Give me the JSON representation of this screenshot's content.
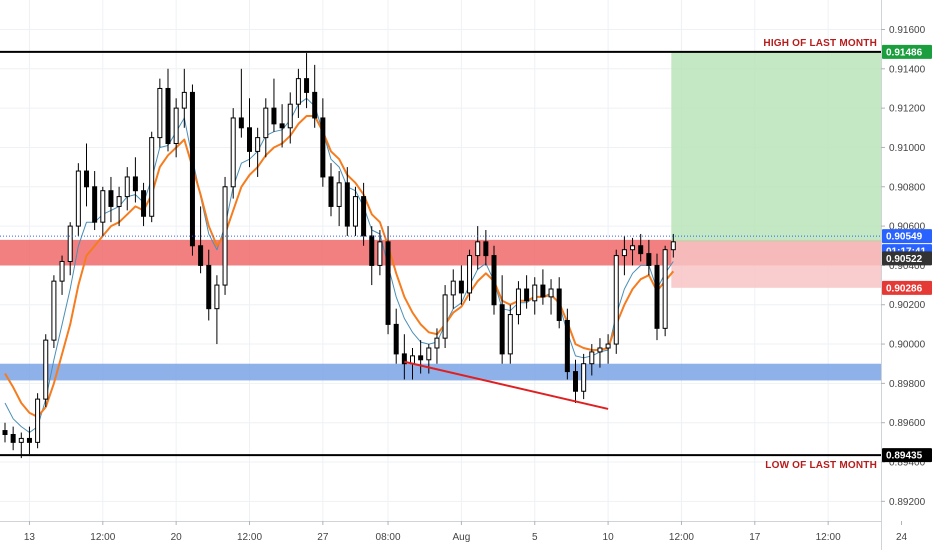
{
  "chart_data": {
    "type": "candlestick",
    "y_axis": {
      "range": [
        0.891,
        0.9175
      ],
      "ticks": [
        "0.91600",
        "0.91400",
        "0.91200",
        "0.91000",
        "0.90800",
        "0.90600",
        "0.90400",
        "0.90200",
        "0.90000",
        "0.89800",
        "0.89600",
        "0.89400",
        "0.89200"
      ],
      "position": "right"
    },
    "x_axis": {
      "ticks": [
        {
          "label": "13",
          "bar": 3
        },
        {
          "label": "12:00",
          "bar": 12
        },
        {
          "label": "20",
          "bar": 21
        },
        {
          "label": "12:00",
          "bar": 30
        },
        {
          "label": "27",
          "bar": 39
        },
        {
          "label": "08:00",
          "bar": 47
        },
        {
          "label": "Aug",
          "bar": 56
        },
        {
          "label": "5",
          "bar": 65
        },
        {
          "label": "10",
          "bar": 74
        },
        {
          "label": "12:00",
          "bar": 83
        },
        {
          "label": "17",
          "bar": 92
        },
        {
          "label": "12:00",
          "bar": 101
        },
        {
          "label": "24",
          "bar": 110
        }
      ],
      "total_slots": 118
    },
    "candles": [
      [
        0.8956,
        0.896,
        0.895,
        0.8954
      ],
      [
        0.8954,
        0.8958,
        0.8946,
        0.895
      ],
      [
        0.895,
        0.8955,
        0.8942,
        0.8952
      ],
      [
        0.8952,
        0.8958,
        0.8944,
        0.895
      ],
      [
        0.895,
        0.8975,
        0.8947,
        0.8972
      ],
      [
        0.8972,
        0.9005,
        0.8968,
        0.9002
      ],
      [
        0.9002,
        0.9035,
        0.8998,
        0.9032
      ],
      [
        0.9032,
        0.9045,
        0.9025,
        0.9042
      ],
      [
        0.9042,
        0.9062,
        0.9035,
        0.906
      ],
      [
        0.906,
        0.9092,
        0.9055,
        0.9088
      ],
      [
        0.9088,
        0.9102,
        0.907,
        0.908
      ],
      [
        0.908,
        0.9088,
        0.9058,
        0.9062
      ],
      [
        0.9062,
        0.908,
        0.9055,
        0.9078
      ],
      [
        0.9078,
        0.9085,
        0.9062,
        0.907
      ],
      [
        0.907,
        0.908,
        0.906,
        0.9075
      ],
      [
        0.9075,
        0.909,
        0.9068,
        0.9085
      ],
      [
        0.9085,
        0.9095,
        0.9072,
        0.9078
      ],
      [
        0.9078,
        0.9082,
        0.906,
        0.9065
      ],
      [
        0.9065,
        0.9108,
        0.9062,
        0.9105
      ],
      [
        0.9105,
        0.9135,
        0.91,
        0.913
      ],
      [
        0.913,
        0.914,
        0.9098,
        0.9102
      ],
      [
        0.9102,
        0.9125,
        0.9095,
        0.912
      ],
      [
        0.912,
        0.914,
        0.911,
        0.9128
      ],
      [
        0.9128,
        0.9132,
        0.9045,
        0.905
      ],
      [
        0.905,
        0.907,
        0.9036,
        0.904
      ],
      [
        0.904,
        0.9048,
        0.9012,
        0.9018
      ],
      [
        0.9018,
        0.9035,
        0.9,
        0.903
      ],
      [
        0.903,
        0.9085,
        0.9025,
        0.908
      ],
      [
        0.908,
        0.912,
        0.9074,
        0.9115
      ],
      [
        0.9115,
        0.914,
        0.9105,
        0.911
      ],
      [
        0.911,
        0.9125,
        0.909,
        0.9098
      ],
      [
        0.9098,
        0.911,
        0.9085,
        0.9105
      ],
      [
        0.9105,
        0.9125,
        0.9095,
        0.912
      ],
      [
        0.912,
        0.9135,
        0.9108,
        0.9112
      ],
      [
        0.9112,
        0.9122,
        0.91,
        0.911
      ],
      [
        0.911,
        0.9128,
        0.9102,
        0.9122
      ],
      [
        0.9122,
        0.914,
        0.9115,
        0.9135
      ],
      [
        0.9135,
        0.9148,
        0.912,
        0.9128
      ],
      [
        0.9128,
        0.9142,
        0.911,
        0.9115
      ],
      [
        0.9115,
        0.9125,
        0.908,
        0.9085
      ],
      [
        0.9085,
        0.9092,
        0.9065,
        0.907
      ],
      [
        0.907,
        0.9088,
        0.906,
        0.9082
      ],
      [
        0.9082,
        0.909,
        0.9055,
        0.906
      ],
      [
        0.906,
        0.908,
        0.9055,
        0.9075
      ],
      [
        0.9075,
        0.9082,
        0.905,
        0.9055
      ],
      [
        0.9055,
        0.906,
        0.903,
        0.904
      ],
      [
        0.904,
        0.9058,
        0.9035,
        0.9052
      ],
      [
        0.9052,
        0.906,
        0.9005,
        0.901
      ],
      [
        0.901,
        0.9018,
        0.899,
        0.8995
      ],
      [
        0.8995,
        0.9005,
        0.8982,
        0.899
      ],
      [
        0.899,
        0.8998,
        0.8982,
        0.8994
      ],
      [
        0.8994,
        0.9002,
        0.8985,
        0.8992
      ],
      [
        0.8992,
        0.9,
        0.8985,
        0.8998
      ],
      [
        0.8998,
        0.9008,
        0.899,
        0.9003
      ],
      [
        0.9003,
        0.903,
        0.8998,
        0.9025
      ],
      [
        0.9025,
        0.9038,
        0.9018,
        0.9032
      ],
      [
        0.9032,
        0.904,
        0.902,
        0.9026
      ],
      [
        0.9026,
        0.9048,
        0.9022,
        0.9045
      ],
      [
        0.9045,
        0.906,
        0.9038,
        0.9052
      ],
      [
        0.9052,
        0.9058,
        0.904,
        0.9045
      ],
      [
        0.9045,
        0.905,
        0.9015,
        0.902
      ],
      [
        0.902,
        0.9035,
        0.899,
        0.8995
      ],
      [
        0.8995,
        0.902,
        0.899,
        0.9015
      ],
      [
        0.9015,
        0.9032,
        0.901,
        0.9028
      ],
      [
        0.9028,
        0.9035,
        0.9018,
        0.9022
      ],
      [
        0.9022,
        0.9034,
        0.9015,
        0.903
      ],
      [
        0.903,
        0.9038,
        0.902,
        0.9024
      ],
      [
        0.9024,
        0.9033,
        0.9015,
        0.9028
      ],
      [
        0.9028,
        0.9034,
        0.9008,
        0.9012
      ],
      [
        0.9012,
        0.9018,
        0.8982,
        0.8986
      ],
      [
        0.8986,
        0.8992,
        0.897,
        0.8976
      ],
      [
        0.8976,
        0.8995,
        0.8972,
        0.899
      ],
      [
        0.899,
        0.9,
        0.8984,
        0.8996
      ],
      [
        0.8996,
        0.9003,
        0.8988,
        0.8998
      ],
      [
        0.8998,
        0.9005,
        0.899,
        0.9
      ],
      [
        0.9,
        0.9048,
        0.8995,
        0.9045
      ],
      [
        0.9045,
        0.9055,
        0.9035,
        0.9048
      ],
      [
        0.9048,
        0.9054,
        0.904,
        0.905
      ],
      [
        0.905,
        0.9056,
        0.9042,
        0.9046
      ],
      [
        0.9046,
        0.9053,
        0.9035,
        0.904
      ],
      [
        0.904,
        0.9046,
        0.9002,
        0.9008
      ],
      [
        0.9008,
        0.905,
        0.9004,
        0.9048
      ],
      [
        0.9048,
        0.9056,
        0.9044,
        0.9052
      ]
    ],
    "candle_slots": [
      0,
      1,
      2,
      3,
      4,
      5,
      6,
      7,
      8,
      9,
      10,
      11,
      12,
      13,
      14,
      15,
      16,
      17,
      18,
      19,
      20,
      21,
      22,
      23,
      24,
      25,
      26,
      27,
      28,
      29,
      30,
      31,
      32,
      33,
      34,
      35,
      36,
      37,
      38,
      39,
      40,
      41,
      42,
      43,
      44,
      45,
      46,
      47,
      48,
      49,
      50,
      51,
      52,
      53,
      54,
      55,
      56,
      57,
      58,
      59,
      60,
      61,
      62,
      63,
      64,
      65,
      66,
      67,
      68,
      69,
      70,
      71,
      72,
      73,
      74,
      75,
      76,
      77,
      78,
      79,
      80,
      81,
      82
    ],
    "ema_slow": [
      0.8985,
      0.8978,
      0.897,
      0.8965,
      0.8963,
      0.8968,
      0.898,
      0.8995,
      0.901,
      0.903,
      0.9045,
      0.905,
      0.9055,
      0.906,
      0.9062,
      0.9066,
      0.907,
      0.9068,
      0.9076,
      0.909,
      0.9096,
      0.91,
      0.9104,
      0.909,
      0.9076,
      0.906,
      0.905,
      0.9056,
      0.9068,
      0.908,
      0.9086,
      0.909,
      0.9096,
      0.91,
      0.9102,
      0.9106,
      0.9112,
      0.9116,
      0.9116,
      0.9108,
      0.9098,
      0.9094,
      0.9086,
      0.9082,
      0.9076,
      0.9066,
      0.9062,
      0.905,
      0.9036,
      0.9024,
      0.9016,
      0.901,
      0.9006,
      0.9005,
      0.901,
      0.9016,
      0.9019,
      0.9026,
      0.9032,
      0.9036,
      0.9032,
      0.9022,
      0.902,
      0.9022,
      0.9022,
      0.9024,
      0.9024,
      0.9025,
      0.9021,
      0.9011,
      0.9,
      0.8998,
      0.8997,
      0.8997,
      0.8998,
      0.901,
      0.902,
      0.9028,
      0.9033,
      0.9035,
      0.9027,
      0.9032,
      0.9037
    ],
    "ema_fast": [
      0.897,
      0.8962,
      0.8958,
      0.8955,
      0.8958,
      0.8972,
      0.8992,
      0.901,
      0.9028,
      0.905,
      0.9062,
      0.9062,
      0.9066,
      0.9068,
      0.907,
      0.9075,
      0.9076,
      0.9072,
      0.9084,
      0.91,
      0.9101,
      0.9108,
      0.9115,
      0.9094,
      0.9075,
      0.9056,
      0.9048,
      0.906,
      0.908,
      0.9092,
      0.9094,
      0.9098,
      0.9106,
      0.9108,
      0.9109,
      0.9114,
      0.9122,
      0.9125,
      0.9121,
      0.9108,
      0.9094,
      0.909,
      0.908,
      0.9078,
      0.907,
      0.9058,
      0.9056,
      0.904,
      0.9024,
      0.9013,
      0.9006,
      0.9001,
      0.9,
      0.9001,
      0.901,
      0.9018,
      0.9021,
      0.903,
      0.9038,
      0.9041,
      0.9032,
      0.9018,
      0.9017,
      0.9021,
      0.9021,
      0.9024,
      0.9024,
      0.9026,
      0.902,
      0.9006,
      0.8994,
      0.8993,
      0.8994,
      0.8996,
      0.8997,
      0.9015,
      0.9028,
      0.9036,
      0.904,
      0.904,
      0.9028,
      0.9036,
      0.9042
    ],
    "levels": {
      "high_of_last_month": 0.91486,
      "low_of_last_month": 0.89435
    },
    "zones": {
      "resistance": [
        0.904,
        0.9053
      ],
      "support": [
        0.89815,
        0.899
      ]
    },
    "position": {
      "entry": 0.90522,
      "target": 0.91486,
      "stop": 0.90286,
      "start_slot": 82
    },
    "trendline": {
      "from": {
        "slot": 49,
        "price": 0.8991
      },
      "to": {
        "slot": 74,
        "price": 0.8967
      }
    },
    "price_labels": {
      "last": "0.90549",
      "timer": "01:17:41",
      "entry": "0.90522",
      "stop": "0.90286",
      "high": "0.91486",
      "low": "0.89435"
    },
    "annotations": {
      "high": "HIGH OF LAST MONTH",
      "low": "LOW OF LAST MONTH"
    },
    "colors": {
      "candle": "#000000",
      "ema_slow": "#f57c1f",
      "ema_fast": "#4a8fb5",
      "resistance": "#f06a6a",
      "support": "#7ba3e6",
      "target_zone": "#b9e4b9",
      "stop_zone": "#f8c4c4",
      "trendline": "#e02020",
      "annotation": "#b71c1c",
      "badge_green": "#1b9e3e",
      "badge_blue": "#2962ff",
      "badge_dark": "#333333",
      "badge_red": "#e53935"
    }
  }
}
